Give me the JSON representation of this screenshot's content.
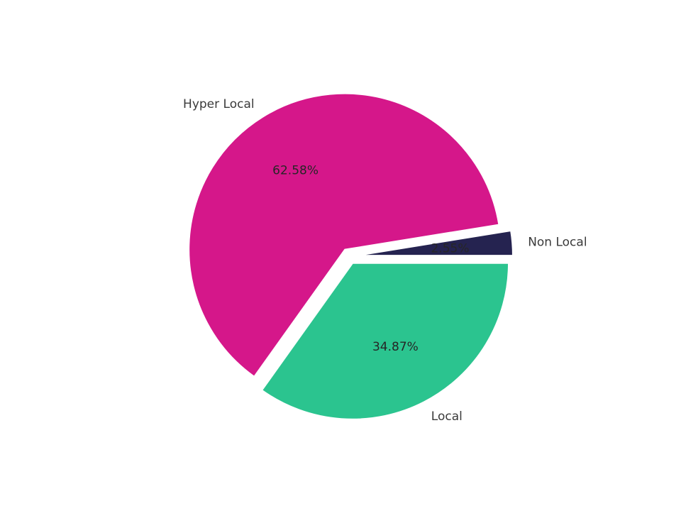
{
  "page": {
    "background_color": "#ffffff"
  },
  "chart_data": {
    "type": "pie",
    "title": "",
    "slices": [
      {
        "label": "Non Local",
        "value": 2.55,
        "pct_label": "2.55%",
        "color": "#252350"
      },
      {
        "label": "Hyper Local",
        "value": 62.58,
        "pct_label": "62.58%",
        "color": "#D5178A"
      },
      {
        "label": "Local",
        "value": 34.87,
        "pct_label": "34.87%",
        "color": "#2BC48F"
      }
    ],
    "start_angle_deg": 0,
    "direction": "counterclockwise",
    "explode": 0.05,
    "pct_distance": 0.6,
    "label_distance": 1.1,
    "wedge_edge_color": "#ffffff",
    "pct_text_color": "#262626",
    "label_text_color": "#3a3a3a",
    "legend": "none",
    "grid": false
  }
}
